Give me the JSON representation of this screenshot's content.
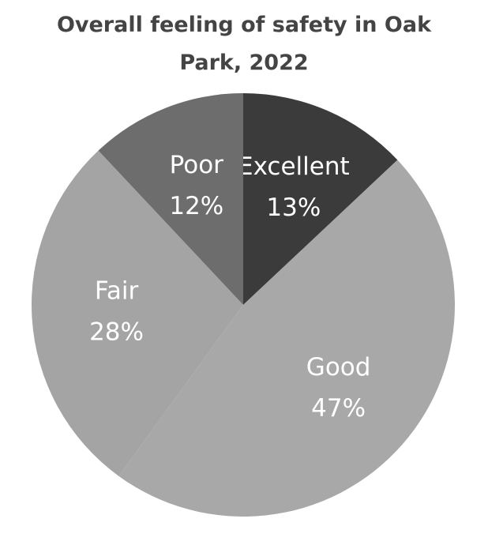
{
  "chart_data": {
    "type": "pie",
    "title": "Overall feeling of safety in Oak Park, 2022",
    "categories": [
      "Excellent",
      "Good",
      "Fair",
      "Poor"
    ],
    "values": [
      13,
      47,
      28,
      12
    ],
    "value_labels": [
      "13%",
      "47%",
      "28%",
      "12%"
    ],
    "colors": [
      "#3b3b3b",
      "#a8a8a8",
      "#a4a4a4",
      "#6d6d6d"
    ]
  }
}
